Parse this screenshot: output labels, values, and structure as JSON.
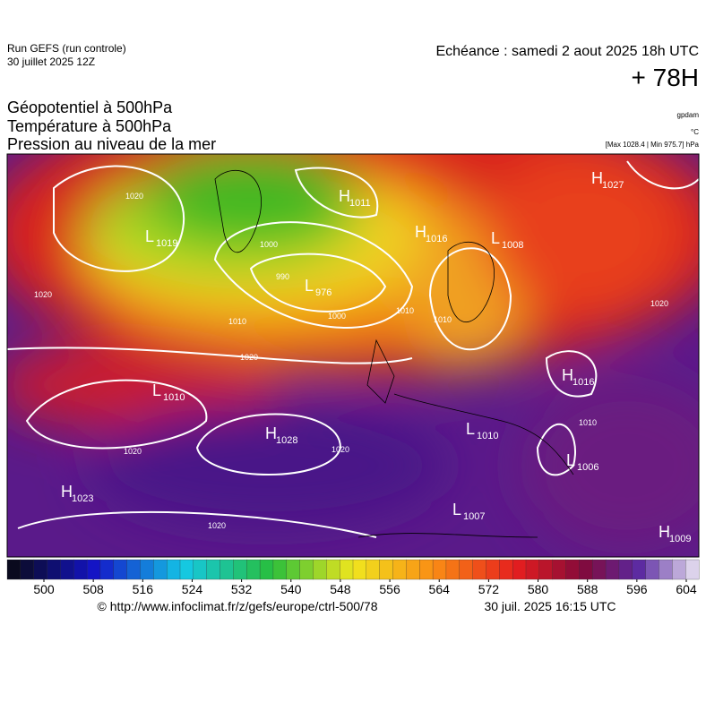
{
  "header": {
    "run": "Run GEFS (run controle)",
    "run_date": "30 juillet 2025 12Z",
    "echeance": "Echéance : samedi 2 aout 2025 18h UTC",
    "lead": "+ 78H"
  },
  "titles": [
    "Géopotentiel à 500hPa",
    "Température à 500hPa",
    "Pression au niveau de la mer"
  ],
  "units": {
    "geopotential": "gpdam",
    "temperature": "°C",
    "pressure": "[Max 1028.4 | Min 975.7] hPa"
  },
  "centers": [
    {
      "kind": "L",
      "value": "1019"
    },
    {
      "kind": "H",
      "value": "1011"
    },
    {
      "kind": "L",
      "value": "976"
    },
    {
      "kind": "H",
      "value": "1016"
    },
    {
      "kind": "L",
      "value": "1008"
    },
    {
      "kind": "H",
      "value": "1027"
    },
    {
      "kind": "L",
      "value": "1010"
    },
    {
      "kind": "H",
      "value": "1028"
    },
    {
      "kind": "H",
      "value": "1023"
    },
    {
      "kind": "H",
      "value": "1016"
    },
    {
      "kind": "L",
      "value": "1010"
    },
    {
      "kind": "L",
      "value": "1006"
    },
    {
      "kind": "L",
      "value": "1007"
    },
    {
      "kind": "H",
      "value": "1009"
    }
  ],
  "isobar_labels": [
    "1020",
    "1000",
    "990",
    "1010",
    "1000",
    "1020",
    "1010",
    "1010",
    "1020",
    "1020",
    "1020",
    "1020",
    "1010",
    "1020"
  ],
  "colorbar": {
    "ticks": [
      500,
      508,
      516,
      524,
      532,
      540,
      548,
      556,
      564,
      572,
      580,
      588,
      596,
      604
    ],
    "lim": [
      500,
      604
    ]
  },
  "footer": {
    "source": "© http://www.infoclimat.fr/z/gefs/europe/ctrl-500/78",
    "timestamp": "30 juil. 2025 16:15 UTC"
  }
}
